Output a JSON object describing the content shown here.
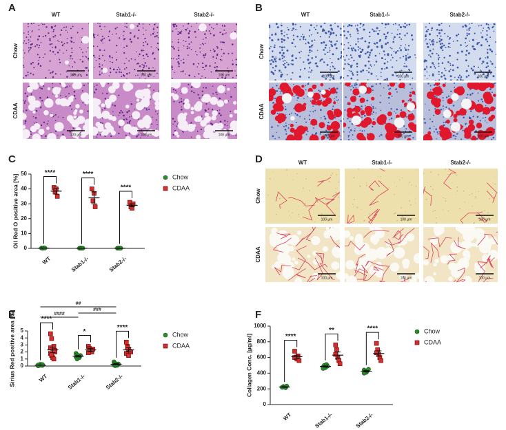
{
  "image_panels": [
    {
      "letter": "A",
      "columns": [
        "WT",
        "Stab1-/-",
        "Stab2-/-"
      ],
      "rows": [
        "Chow",
        "CDAA"
      ],
      "scale_bar": "100 µm"
    },
    {
      "letter": "B",
      "columns": [
        "WT",
        "Stab1-/-",
        "Stab2-/-"
      ],
      "rows": [
        "Chow",
        "CDAA"
      ],
      "scale_bar": "100 µm"
    },
    {
      "letter": "D",
      "columns": [
        "WT",
        "Stab1-/-",
        "Stab2-/-"
      ],
      "rows": [
        "Chow",
        "CDAA"
      ],
      "scale_bar": "100 µm"
    }
  ],
  "chart_data": [
    {
      "letter": "C",
      "type": "scatter",
      "ylabel": "Oil  Red O positive area [%]",
      "categories": [
        "WT",
        "Stab1-/-",
        "Stab2-/-"
      ],
      "ylim": [
        0,
        50
      ],
      "yticks": [
        0,
        10,
        20,
        30,
        40,
        50
      ],
      "series": [
        {
          "name": "Chow",
          "color": "#2e8b2e",
          "marker": "circle",
          "values": [
            [
              0.2,
              0.1,
              0.3,
              0.2
            ],
            [
              0.1,
              0.2,
              0.1,
              0.1
            ],
            [
              0.1,
              0.2,
              0.1,
              0.1
            ]
          ],
          "means": [
            0.2,
            0.1,
            0.1
          ],
          "errors": [
            0.1,
            0.1,
            0.1
          ]
        },
        {
          "name": "CDAA",
          "color": "#d32f2f",
          "marker": "square",
          "values": [
            [
              41,
              38,
              40,
              35
            ],
            [
              40,
              32,
              37,
              28
            ],
            [
              31,
              28,
              27,
              30
            ]
          ],
          "means": [
            38.5,
            34,
            29
          ],
          "errors": [
            2,
            4,
            1
          ]
        }
      ],
      "significance": [
        "****",
        "****",
        "****"
      ]
    },
    {
      "letter": "E",
      "type": "scatter",
      "ylabel": "Sirius Red positive area [%]",
      "categories": [
        "WT",
        "Stab1-/-",
        "Stab2-/-"
      ],
      "ylim": [
        0,
        5
      ],
      "yticks": [
        0,
        1,
        2,
        3,
        4,
        5
      ],
      "series": [
        {
          "name": "Chow",
          "color": "#2e8b2e",
          "marker": "circle",
          "values": [
            [
              0.05,
              0.1,
              0.15,
              0.2,
              0.1,
              0.05,
              0.1,
              0.25,
              0.1,
              0.2,
              0.15
            ],
            [
              1.8,
              1.6,
              1.4,
              1.2,
              1.5,
              1.3,
              1.0,
              1.4
            ],
            [
              0.6,
              0.4,
              0.2,
              0.1,
              0.3,
              0.15,
              0.05,
              0.2
            ]
          ],
          "means": [
            0.13,
            1.4,
            0.25
          ],
          "errors": [
            0.03,
            0.1,
            0.1
          ]
        },
        {
          "name": "CDAA",
          "color": "#d32f2f",
          "marker": "square",
          "values": [
            [
              4.6,
              3.9,
              2.5,
              2.8,
              2.2,
              1.8,
              1.5,
              1.2,
              1.0,
              2.0,
              2.6,
              1.6
            ],
            [
              2.8,
              2.5,
              2.2,
              2.0,
              2.4,
              1.9,
              2.3
            ],
            [
              3.4,
              2.8,
              2.4,
              2.1,
              2.0,
              1.8,
              2.6,
              1.5
            ]
          ],
          "means": [
            2.3,
            2.3,
            2.3
          ],
          "errors": [
            0.4,
            0.2,
            0.3
          ]
        }
      ],
      "significance": [
        "****",
        "*",
        "****"
      ],
      "between_groups": [
        {
          "text": "##",
          "from": 0,
          "to": 2
        },
        {
          "text": "####",
          "from": 0,
          "to": 1
        },
        {
          "text": "###",
          "from": 1,
          "to": 2
        }
      ]
    },
    {
      "letter": "F",
      "type": "scatter",
      "ylabel": "Collagen Conc. [µg/ml]",
      "categories": [
        "WT",
        "Stab1-/-",
        "Stab2-/-"
      ],
      "ylim": [
        0,
        1000
      ],
      "yticks": [
        0,
        200,
        400,
        600,
        800,
        1000
      ],
      "series": [
        {
          "name": "Chow",
          "color": "#2e8b2e",
          "marker": "circle",
          "values": [
            [
              220,
              230,
              225,
              215,
              235,
              220
            ],
            [
              480,
              500,
              470,
              510,
              490,
              460
            ],
            [
              440,
              420,
              410,
              430,
              450,
              400
            ]
          ],
          "means": [
            224,
            485,
            425
          ],
          "errors": [
            5,
            8,
            8
          ]
        },
        {
          "name": "CDAA",
          "color": "#d32f2f",
          "marker": "square",
          "values": [
            [
              680,
              600,
              580,
              620,
              560,
              600
            ],
            [
              760,
              700,
              600,
              560,
              520,
              640
            ],
            [
              780,
              700,
              640,
              600,
              560,
              660
            ]
          ],
          "means": [
            610,
            630,
            650
          ],
          "errors": [
            20,
            40,
            35
          ]
        }
      ],
      "significance": [
        "****",
        "**",
        "****"
      ]
    }
  ]
}
